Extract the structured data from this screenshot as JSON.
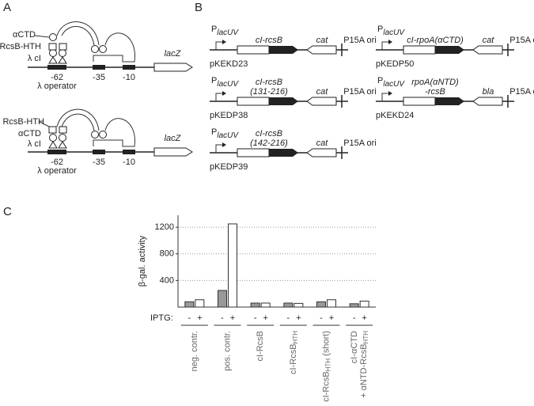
{
  "panels": {
    "a": "A",
    "b": "B",
    "c": "C"
  },
  "panel_a": {
    "top": {
      "annotations": [
        "αCTD",
        "RcsB-HTH",
        "λ cI"
      ]
    },
    "bottom": {
      "annotations": [
        "RcsB-HTH",
        "αCTD",
        "λ cI"
      ]
    },
    "positions": [
      "-62",
      "-35",
      "-10"
    ],
    "gene": "lacZ",
    "operator": "λ operator"
  },
  "panel_b": {
    "promoter": {
      "main": "P",
      "sub": "lacUV"
    },
    "ori": "P15A ori",
    "plasmids": [
      {
        "name": "pKEKD23",
        "gene": [
          "cI-rcsB"
        ],
        "marker": "cat"
      },
      {
        "name": "pKEDP50",
        "gene": [
          "cI-rpoA(αCTD)"
        ],
        "marker": "cat"
      },
      {
        "name": "pKEDP38",
        "gene": [
          "cI-rcsB",
          "(131-216)"
        ],
        "marker": "cat"
      },
      {
        "name": "pKEKD24",
        "gene": [
          "rpoA(αNTD)",
          "-rcsB"
        ],
        "marker": "bla"
      },
      {
        "name": "pKEDP39",
        "gene": [
          "cI-rcsB",
          "(142-216)"
        ],
        "marker": "cat"
      }
    ]
  },
  "chart_data": {
    "type": "bar",
    "y_label": "β-gal. activity",
    "condition_label": "IPTG:",
    "categories": [
      [
        [
          {
            "text": "neg. contr."
          }
        ]
      ],
      [
        [
          {
            "text": "pos. contr."
          }
        ]
      ],
      [
        [
          {
            "text": "cI-RcsB"
          }
        ]
      ],
      [
        [
          {
            "text": "cI-RcsB"
          },
          {
            "text": "HTH",
            "sub": true
          }
        ]
      ],
      [
        [
          {
            "text": "cI-RcsB"
          },
          {
            "text": "HTH",
            "sub": true
          },
          {
            "text": " (short)"
          }
        ]
      ],
      [
        [
          {
            "text": "cI-αCTD"
          }
        ],
        [
          {
            "text": "+ αNTD-RcsB"
          },
          {
            "text": "HTH",
            "sub": true
          }
        ]
      ]
    ],
    "series": [
      {
        "name": "-",
        "color": "#999999",
        "values": [
          80,
          250,
          60,
          60,
          80,
          50
        ]
      },
      {
        "name": "+",
        "color": "#ffffff",
        "values": [
          110,
          1250,
          60,
          55,
          110,
          90
        ]
      }
    ],
    "ylim": [
      0,
      1380
    ],
    "yticks": [
      400,
      800,
      1200
    ],
    "grid": true
  }
}
